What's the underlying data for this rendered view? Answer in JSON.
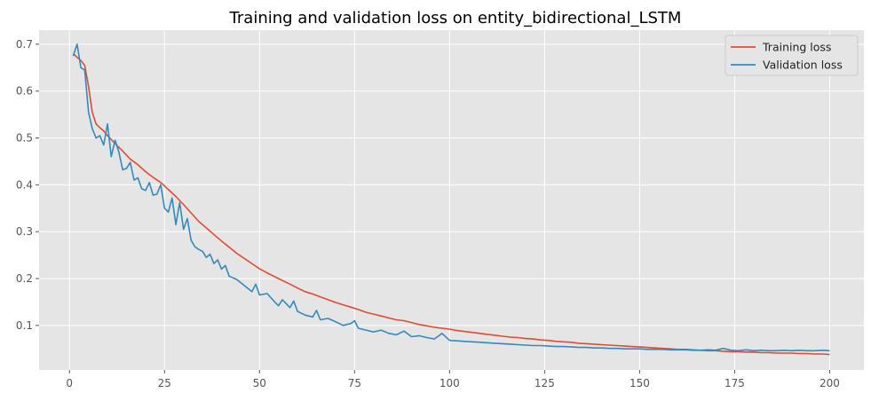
{
  "chart_data": {
    "type": "line",
    "title": "Training and validation loss on entity_bidirectional_LSTM",
    "xlabel": "",
    "ylabel": "",
    "xlim": [
      -8,
      209
    ],
    "ylim": [
      0.005,
      0.73
    ],
    "x_ticks": [
      0,
      25,
      50,
      75,
      100,
      125,
      150,
      175,
      200
    ],
    "y_ticks": [
      0.1,
      0.2,
      0.3,
      0.4,
      0.5,
      0.6,
      0.7
    ],
    "y_tick_labels": [
      "0.1",
      "0.2",
      "0.3",
      "0.4",
      "0.5",
      "0.6",
      "0.7"
    ],
    "grid": true,
    "legend_position": "top-right",
    "series": [
      {
        "name": "Training loss",
        "color": "#E24A33",
        "points": [
          [
            1,
            0.68
          ],
          [
            2,
            0.672
          ],
          [
            3,
            0.665
          ],
          [
            4,
            0.655
          ],
          [
            5,
            0.61
          ],
          [
            6,
            0.555
          ],
          [
            7,
            0.53
          ],
          [
            8,
            0.522
          ],
          [
            9,
            0.515
          ],
          [
            10,
            0.505
          ],
          [
            12,
            0.488
          ],
          [
            14,
            0.472
          ],
          [
            16,
            0.455
          ],
          [
            18,
            0.443
          ],
          [
            20,
            0.428
          ],
          [
            22,
            0.416
          ],
          [
            24,
            0.405
          ],
          [
            26,
            0.39
          ],
          [
            28,
            0.375
          ],
          [
            30,
            0.358
          ],
          [
            32,
            0.34
          ],
          [
            34,
            0.322
          ],
          [
            36,
            0.308
          ],
          [
            38,
            0.294
          ],
          [
            40,
            0.28
          ],
          [
            42,
            0.267
          ],
          [
            44,
            0.254
          ],
          [
            46,
            0.243
          ],
          [
            48,
            0.232
          ],
          [
            50,
            0.221
          ],
          [
            52,
            0.212
          ],
          [
            54,
            0.204
          ],
          [
            56,
            0.196
          ],
          [
            58,
            0.188
          ],
          [
            60,
            0.18
          ],
          [
            62,
            0.172
          ],
          [
            64,
            0.167
          ],
          [
            66,
            0.161
          ],
          [
            68,
            0.155
          ],
          [
            70,
            0.149
          ],
          [
            72,
            0.144
          ],
          [
            74,
            0.139
          ],
          [
            76,
            0.134
          ],
          [
            78,
            0.128
          ],
          [
            80,
            0.124
          ],
          [
            82,
            0.12
          ],
          [
            84,
            0.116
          ],
          [
            86,
            0.112
          ],
          [
            88,
            0.11
          ],
          [
            90,
            0.106
          ],
          [
            92,
            0.102
          ],
          [
            94,
            0.099
          ],
          [
            96,
            0.096
          ],
          [
            98,
            0.094
          ],
          [
            100,
            0.092
          ],
          [
            102,
            0.089
          ],
          [
            104,
            0.087
          ],
          [
            106,
            0.085
          ],
          [
            108,
            0.083
          ],
          [
            110,
            0.081
          ],
          [
            112,
            0.079
          ],
          [
            114,
            0.077
          ],
          [
            116,
            0.075
          ],
          [
            118,
            0.074
          ],
          [
            120,
            0.072
          ],
          [
            122,
            0.071
          ],
          [
            124,
            0.069
          ],
          [
            126,
            0.068
          ],
          [
            128,
            0.066
          ],
          [
            130,
            0.065
          ],
          [
            132,
            0.064
          ],
          [
            134,
            0.062
          ],
          [
            136,
            0.061
          ],
          [
            138,
            0.06
          ],
          [
            140,
            0.059
          ],
          [
            142,
            0.058
          ],
          [
            144,
            0.057
          ],
          [
            146,
            0.056
          ],
          [
            148,
            0.055
          ],
          [
            150,
            0.054
          ],
          [
            152,
            0.053
          ],
          [
            154,
            0.052
          ],
          [
            156,
            0.051
          ],
          [
            158,
            0.05
          ],
          [
            160,
            0.049
          ],
          [
            162,
            0.049
          ],
          [
            164,
            0.048
          ],
          [
            166,
            0.047
          ],
          [
            168,
            0.046
          ],
          [
            170,
            0.046
          ],
          [
            172,
            0.045
          ],
          [
            174,
            0.044
          ],
          [
            176,
            0.044
          ],
          [
            178,
            0.043
          ],
          [
            180,
            0.043
          ],
          [
            182,
            0.042
          ],
          [
            184,
            0.042
          ],
          [
            186,
            0.041
          ],
          [
            188,
            0.041
          ],
          [
            190,
            0.041
          ],
          [
            192,
            0.04
          ],
          [
            194,
            0.04
          ],
          [
            196,
            0.039
          ],
          [
            198,
            0.039
          ],
          [
            200,
            0.038
          ]
        ]
      },
      {
        "name": "Validation loss",
        "color": "#348ABD",
        "points": [
          [
            1,
            0.675
          ],
          [
            2,
            0.7
          ],
          [
            3,
            0.65
          ],
          [
            4,
            0.645
          ],
          [
            5,
            0.555
          ],
          [
            6,
            0.52
          ],
          [
            7,
            0.5
          ],
          [
            8,
            0.505
          ],
          [
            9,
            0.485
          ],
          [
            10,
            0.53
          ],
          [
            11,
            0.46
          ],
          [
            12,
            0.495
          ],
          [
            13,
            0.47
          ],
          [
            14,
            0.432
          ],
          [
            15,
            0.435
          ],
          [
            16,
            0.448
          ],
          [
            17,
            0.41
          ],
          [
            18,
            0.415
          ],
          [
            19,
            0.392
          ],
          [
            20,
            0.388
          ],
          [
            21,
            0.405
          ],
          [
            22,
            0.378
          ],
          [
            23,
            0.38
          ],
          [
            24,
            0.4
          ],
          [
            25,
            0.35
          ],
          [
            26,
            0.342
          ],
          [
            27,
            0.372
          ],
          [
            28,
            0.315
          ],
          [
            29,
            0.362
          ],
          [
            30,
            0.305
          ],
          [
            31,
            0.328
          ],
          [
            32,
            0.282
          ],
          [
            33,
            0.268
          ],
          [
            34,
            0.262
          ],
          [
            35,
            0.258
          ],
          [
            36,
            0.245
          ],
          [
            37,
            0.252
          ],
          [
            38,
            0.232
          ],
          [
            39,
            0.24
          ],
          [
            40,
            0.22
          ],
          [
            41,
            0.228
          ],
          [
            42,
            0.205
          ],
          [
            44,
            0.198
          ],
          [
            46,
            0.185
          ],
          [
            48,
            0.172
          ],
          [
            49,
            0.188
          ],
          [
            50,
            0.165
          ],
          [
            52,
            0.168
          ],
          [
            54,
            0.15
          ],
          [
            55,
            0.142
          ],
          [
            56,
            0.155
          ],
          [
            58,
            0.138
          ],
          [
            59,
            0.152
          ],
          [
            60,
            0.13
          ],
          [
            62,
            0.122
          ],
          [
            64,
            0.118
          ],
          [
            65,
            0.132
          ],
          [
            66,
            0.112
          ],
          [
            68,
            0.115
          ],
          [
            70,
            0.108
          ],
          [
            72,
            0.1
          ],
          [
            74,
            0.104
          ],
          [
            75,
            0.11
          ],
          [
            76,
            0.094
          ],
          [
            78,
            0.09
          ],
          [
            80,
            0.086
          ],
          [
            82,
            0.09
          ],
          [
            84,
            0.083
          ],
          [
            86,
            0.08
          ],
          [
            88,
            0.088
          ],
          [
            90,
            0.076
          ],
          [
            92,
            0.078
          ],
          [
            94,
            0.074
          ],
          [
            96,
            0.071
          ],
          [
            98,
            0.083
          ],
          [
            100,
            0.068
          ],
          [
            102,
            0.067
          ],
          [
            104,
            0.066
          ],
          [
            106,
            0.065
          ],
          [
            108,
            0.064
          ],
          [
            110,
            0.063
          ],
          [
            112,
            0.062
          ],
          [
            114,
            0.061
          ],
          [
            116,
            0.06
          ],
          [
            118,
            0.059
          ],
          [
            120,
            0.058
          ],
          [
            122,
            0.057
          ],
          [
            124,
            0.057
          ],
          [
            126,
            0.056
          ],
          [
            128,
            0.055
          ],
          [
            130,
            0.055
          ],
          [
            132,
            0.054
          ],
          [
            134,
            0.053
          ],
          [
            136,
            0.053
          ],
          [
            138,
            0.052
          ],
          [
            140,
            0.052
          ],
          [
            142,
            0.051
          ],
          [
            144,
            0.051
          ],
          [
            146,
            0.05
          ],
          [
            148,
            0.05
          ],
          [
            150,
            0.05
          ],
          [
            152,
            0.049
          ],
          [
            154,
            0.049
          ],
          [
            156,
            0.049
          ],
          [
            158,
            0.048
          ],
          [
            160,
            0.048
          ],
          [
            162,
            0.048
          ],
          [
            164,
            0.047
          ],
          [
            166,
            0.047
          ],
          [
            168,
            0.048
          ],
          [
            170,
            0.047
          ],
          [
            172,
            0.051
          ],
          [
            174,
            0.047
          ],
          [
            176,
            0.046
          ],
          [
            178,
            0.048
          ],
          [
            180,
            0.046
          ],
          [
            182,
            0.047
          ],
          [
            184,
            0.046
          ],
          [
            186,
            0.046
          ],
          [
            188,
            0.047
          ],
          [
            190,
            0.046
          ],
          [
            192,
            0.047
          ],
          [
            194,
            0.046
          ],
          [
            196,
            0.046
          ],
          [
            198,
            0.047
          ],
          [
            200,
            0.046
          ]
        ]
      }
    ]
  }
}
